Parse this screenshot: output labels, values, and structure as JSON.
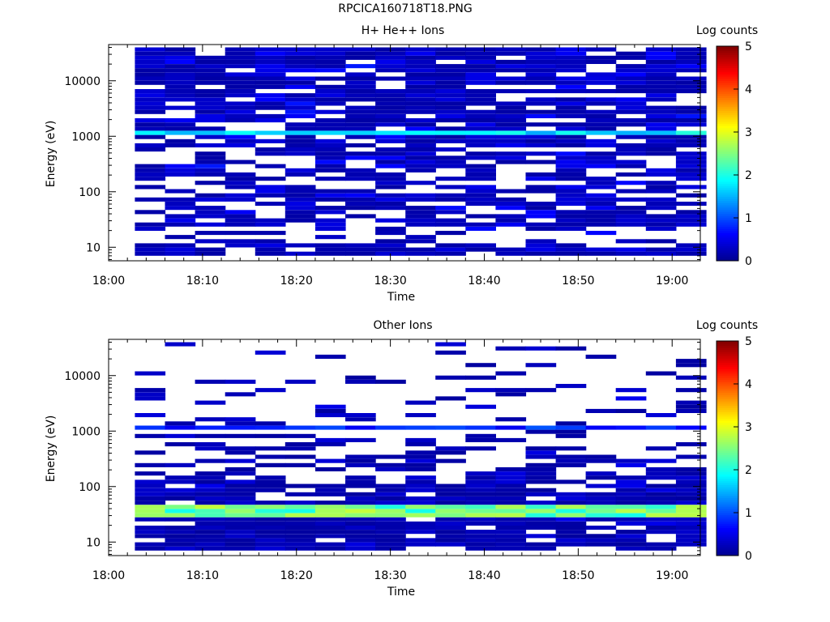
{
  "figure_title": "RPCICA160718T18.PNG",
  "colors": {
    "colormap": [
      "#00008f",
      "#0000ff",
      "#0080ff",
      "#00ffff",
      "#80ff80",
      "#ffff00",
      "#ff8000",
      "#ff0000",
      "#800000"
    ],
    "frame": "#000000",
    "background": "#ffffff"
  },
  "chart_data": [
    {
      "type": "heatmap",
      "title": "H+ He++ Ions",
      "xlabel": "Time",
      "ylabel": "Energy (eV)",
      "x_ticks": [
        "18:00",
        "18:10",
        "18:20",
        "18:30",
        "18:40",
        "18:50",
        "19:00"
      ],
      "x_range_min": [
        0,
        63
      ],
      "y_scale": "log",
      "y_ticks": [
        "10",
        "100",
        "1000",
        "10000"
      ],
      "y_range": [
        5.7,
        45000
      ],
      "colorbar": {
        "label": "Log counts",
        "range": [
          0,
          5
        ],
        "ticks": [
          "0",
          "1",
          "2",
          "3",
          "4",
          "5"
        ]
      },
      "time_bins_start_min": [
        2.8,
        6.0,
        9.2,
        12.4,
        15.6,
        18.8,
        22.0,
        25.2,
        28.4,
        31.6,
        34.8,
        38.0,
        41.2,
        44.4,
        47.6,
        50.8,
        54.0,
        57.2,
        60.4
      ],
      "time_bin_width_min": 3.2,
      "energy_bins": 50,
      "profile": {
        "occupancy_by_energy": [
          [
            8,
            0.85
          ],
          [
            15,
            0.45
          ],
          [
            30,
            0.78
          ],
          [
            100,
            0.6
          ],
          [
            1000,
            0.72
          ],
          [
            40000,
            0.85
          ]
        ],
        "base_level_log_counts": 0.4,
        "peak_band_eV": [
          1000,
          1300
        ],
        "peak_level_log_counts": 1.9,
        "low_energy_gap_eV": [
          11,
          25
        ]
      }
    },
    {
      "type": "heatmap",
      "title": "Other Ions",
      "xlabel": "Time",
      "ylabel": "Energy (eV)",
      "x_ticks": [
        "18:00",
        "18:10",
        "18:20",
        "18:30",
        "18:40",
        "18:50",
        "19:00"
      ],
      "x_range_min": [
        0,
        63
      ],
      "y_scale": "log",
      "y_ticks": [
        "10",
        "100",
        "1000",
        "10000"
      ],
      "y_range": [
        5.7,
        45000
      ],
      "colorbar": {
        "label": "Log counts",
        "range": [
          0,
          5
        ],
        "ticks": [
          "0",
          "1",
          "2",
          "3",
          "4",
          "5"
        ]
      },
      "time_bins_start_min": [
        2.8,
        6.0,
        9.2,
        12.4,
        15.6,
        18.8,
        22.0,
        25.2,
        28.4,
        31.6,
        34.8,
        38.0,
        41.2,
        44.4,
        47.6,
        50.8,
        54.0,
        57.2,
        60.4
      ],
      "time_bin_width_min": 3.2,
      "energy_bins": 50,
      "profile": {
        "occupancy_by_energy": [
          [
            8,
            0.9
          ],
          [
            20,
            0.85
          ],
          [
            60,
            0.9
          ],
          [
            200,
            0.55
          ],
          [
            1000,
            0.25
          ],
          [
            40000,
            0.1
          ]
        ],
        "base_level_log_counts": 0.3,
        "peak_band_eV": [
          27,
          50
        ],
        "peak_level_log_counts": 2.6,
        "secondary_band_eV": [
          1000,
          1200
        ],
        "secondary_level_log_counts": 0.9
      }
    }
  ]
}
